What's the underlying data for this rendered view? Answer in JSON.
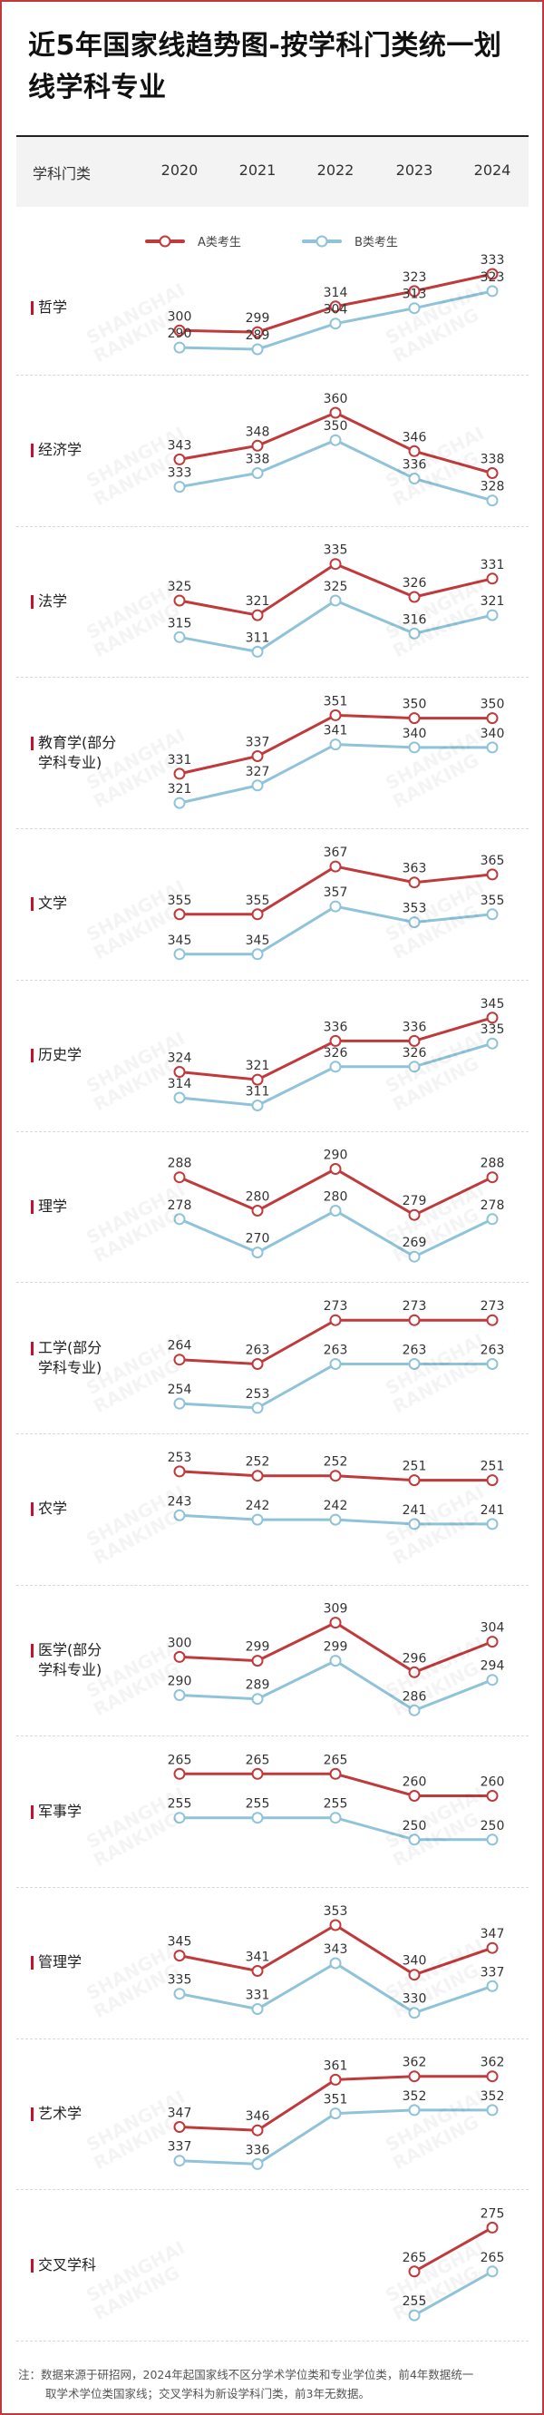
{
  "title": "近5年国家线趋势图-按学科门类统一划线学科专业",
  "header": {
    "category_label": "学科门类",
    "years": [
      "2020",
      "2021",
      "2022",
      "2023",
      "2024"
    ]
  },
  "legend": {
    "a_label": "A类考生",
    "b_label": "B类考生"
  },
  "colors": {
    "a_series": "#c0393b",
    "b_series": "#8fc3d9",
    "accent_bar": "#c8102e",
    "header_bg": "#f3f3f3",
    "frame": "#c0393b"
  },
  "watermark": "SHANGHAI RANKING",
  "note": {
    "line1": "注：数据来源于研招网，2024年起国家线不区分学术学位类和专业学位类，前4年数据统一",
    "line2": "取学术学位类国家线；交叉学科为新设学科门类，前3年无数据。"
  },
  "chart_data": {
    "type": "line",
    "title": "近5年国家线趋势图-按学科门类统一划线学科专业",
    "x": [
      "2020",
      "2021",
      "2022",
      "2023",
      "2024"
    ],
    "xlabel": "",
    "ylabel": "",
    "legend": [
      "A类考生",
      "B类考生"
    ],
    "legend_position": "top",
    "grid": false,
    "panels": [
      {
        "category": "哲学",
        "A": [
          300,
          299,
          314,
          323,
          333
        ],
        "B": [
          290,
          289,
          304,
          313,
          323
        ]
      },
      {
        "category": "经济学",
        "A": [
          343,
          348,
          360,
          346,
          338
        ],
        "B": [
          333,
          338,
          350,
          336,
          328
        ]
      },
      {
        "category": "法学",
        "A": [
          325,
          321,
          335,
          326,
          331
        ],
        "B": [
          315,
          311,
          325,
          316,
          321
        ]
      },
      {
        "category": "教育学(部分学科专业)",
        "A": [
          331,
          337,
          351,
          350,
          350
        ],
        "B": [
          321,
          327,
          341,
          340,
          340
        ]
      },
      {
        "category": "文学",
        "A": [
          355,
          355,
          367,
          363,
          365
        ],
        "B": [
          345,
          345,
          357,
          353,
          355
        ]
      },
      {
        "category": "历史学",
        "A": [
          324,
          321,
          336,
          336,
          345
        ],
        "B": [
          314,
          311,
          326,
          326,
          335
        ]
      },
      {
        "category": "理学",
        "A": [
          288,
          280,
          290,
          279,
          288
        ],
        "B": [
          278,
          270,
          280,
          269,
          278
        ]
      },
      {
        "category": "工学(部分学科专业)",
        "A": [
          264,
          263,
          273,
          273,
          273
        ],
        "B": [
          254,
          253,
          263,
          263,
          263
        ]
      },
      {
        "category": "农学",
        "A": [
          253,
          252,
          252,
          251,
          251
        ],
        "B": [
          243,
          242,
          242,
          241,
          241
        ]
      },
      {
        "category": "医学(部分学科专业)",
        "A": [
          300,
          299,
          309,
          296,
          304
        ],
        "B": [
          290,
          289,
          299,
          286,
          294
        ]
      },
      {
        "category": "军事学",
        "A": [
          265,
          265,
          265,
          260,
          260
        ],
        "B": [
          255,
          255,
          255,
          250,
          250
        ]
      },
      {
        "category": "管理学",
        "A": [
          345,
          341,
          353,
          340,
          347
        ],
        "B": [
          335,
          331,
          343,
          330,
          337
        ]
      },
      {
        "category": "艺术学",
        "A": [
          347,
          346,
          361,
          362,
          362
        ],
        "B": [
          337,
          336,
          351,
          352,
          352
        ]
      },
      {
        "category": "交叉学科",
        "A": [
          null,
          null,
          null,
          265,
          275
        ],
        "B": [
          null,
          null,
          null,
          255,
          265
        ]
      }
    ]
  }
}
